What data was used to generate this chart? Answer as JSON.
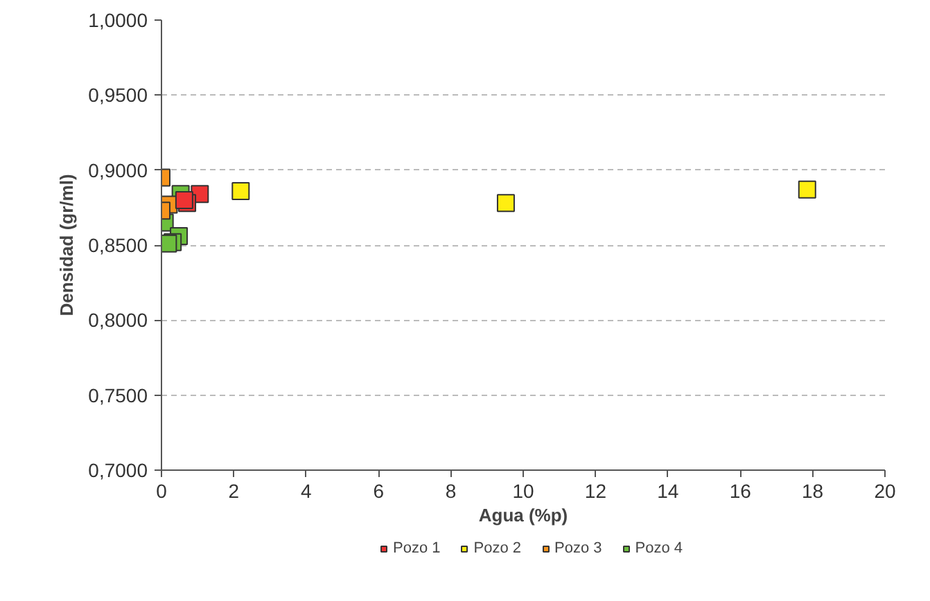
{
  "chart_data": {
    "type": "scatter",
    "xlabel": "Agua (%p)",
    "ylabel": "Densidad (gr/ml)",
    "marker": "square",
    "grid": "y",
    "legend": "bottom",
    "xlim": [
      0,
      20
    ],
    "xticks": [
      0,
      2,
      4,
      6,
      8,
      10,
      12,
      14,
      16,
      18,
      20
    ],
    "ylim": [
      0.7,
      1.0
    ],
    "yticks": [
      {
        "value": 0.7,
        "label": "0,7000"
      },
      {
        "value": 0.75,
        "label": "0,7500"
      },
      {
        "value": 0.8,
        "label": "0,8000"
      },
      {
        "value": 0.85,
        "label": "0,8500"
      },
      {
        "value": 0.9,
        "label": "0,9000"
      },
      {
        "value": 0.95,
        "label": "0,9500"
      },
      {
        "value": 1.0,
        "label": "1,0000"
      }
    ],
    "series": [
      {
        "name": "Pozo 1",
        "color": "#ee3333",
        "x": [
          1.06,
          0.71,
          0.63
        ],
        "values": [
          0.884,
          0.878,
          0.88
        ]
      },
      {
        "name": "Pozo 2",
        "color": "#ffee11",
        "x": [
          2.19,
          9.52,
          17.85
        ],
        "values": [
          0.886,
          0.878,
          0.887
        ]
      },
      {
        "name": "Pozo 3",
        "color": "#f7941d",
        "x": [
          0.0,
          0.2,
          0.0
        ],
        "values": [
          0.895,
          0.877,
          0.873
        ]
      },
      {
        "name": "Pozo 4",
        "color": "#6cbf3c",
        "x": [
          0.53,
          0.09,
          0.48,
          0.31,
          0.18
        ],
        "values": [
          0.884,
          0.865,
          0.856,
          0.852,
          0.851
        ]
      }
    ]
  }
}
